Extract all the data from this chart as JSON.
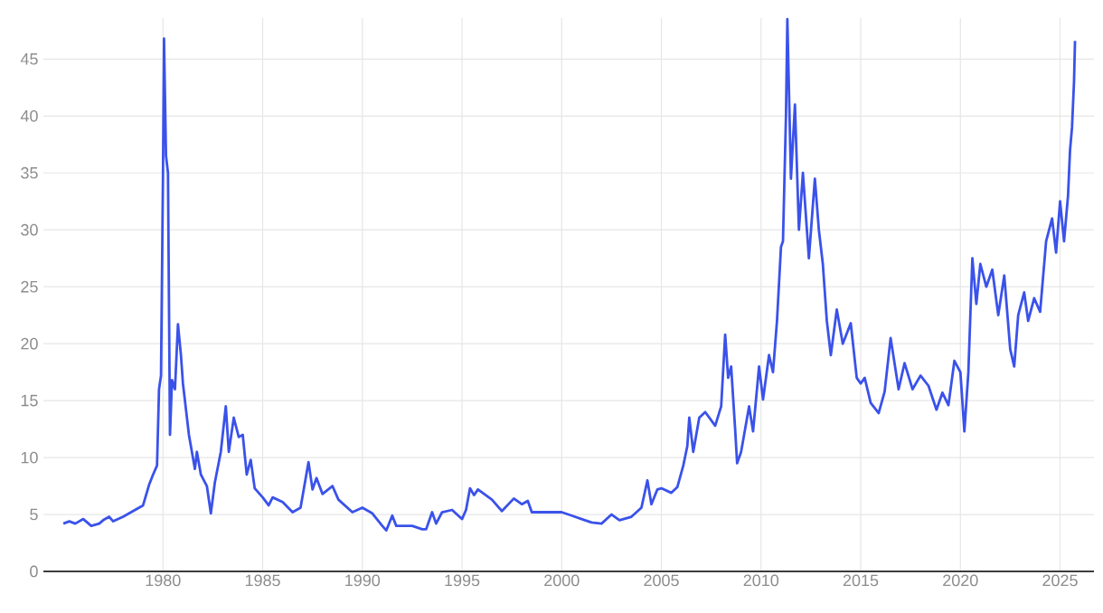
{
  "chart_data": {
    "type": "line",
    "color": "#3a52ea",
    "grid": true,
    "xlim": [
      1974.0,
      2026.7
    ],
    "ylim": [
      0,
      48.6
    ],
    "xticks": [
      1980,
      1985,
      1990,
      1995,
      2000,
      2005,
      2010,
      2015,
      2020,
      2025
    ],
    "yticks": [
      0,
      5,
      10,
      15,
      20,
      25,
      30,
      35,
      40,
      45
    ],
    "x": [
      1975.0,
      1975.3,
      1975.6,
      1976.0,
      1976.4,
      1976.8,
      1977.0,
      1977.3,
      1977.5,
      1978.0,
      1978.5,
      1979.0,
      1979.3,
      1979.5,
      1979.7,
      1979.8,
      1979.9,
      1980.0,
      1980.05,
      1980.15,
      1980.25,
      1980.35,
      1980.45,
      1980.6,
      1980.75,
      1980.9,
      1981.0,
      1981.3,
      1981.6,
      1981.7,
      1981.9,
      1982.2,
      1982.4,
      1982.6,
      1982.9,
      1983.15,
      1983.3,
      1983.55,
      1983.8,
      1984.0,
      1984.2,
      1984.4,
      1984.6,
      1985.0,
      1985.3,
      1985.5,
      1986.0,
      1986.5,
      1986.9,
      1987.3,
      1987.5,
      1987.7,
      1988.0,
      1988.5,
      1988.8,
      1989.5,
      1990.0,
      1990.5,
      1991.0,
      1991.2,
      1991.5,
      1991.7,
      1992.5,
      1993.0,
      1993.2,
      1993.5,
      1993.7,
      1994.0,
      1994.5,
      1995.0,
      1995.2,
      1995.4,
      1995.6,
      1995.8,
      1996.5,
      1997.0,
      1997.6,
      1998.0,
      1998.3,
      1998.5,
      1999.0,
      2000.0,
      2000.5,
      2001.0,
      2001.5,
      2002.0,
      2002.5,
      2002.9,
      2003.5,
      2004.0,
      2004.3,
      2004.5,
      2004.8,
      2005.0,
      2005.5,
      2005.8,
      2006.1,
      2006.3,
      2006.4,
      2006.6,
      2006.9,
      2007.2,
      2007.7,
      2008.0,
      2008.2,
      2008.35,
      2008.5,
      2008.7,
      2008.8,
      2009.0,
      2009.4,
      2009.6,
      2009.9,
      2010.1,
      2010.4,
      2010.6,
      2010.8,
      2011.0,
      2011.1,
      2011.25,
      2011.32,
      2011.5,
      2011.7,
      2011.9,
      2012.1,
      2012.4,
      2012.7,
      2012.9,
      2013.1,
      2013.3,
      2013.5,
      2013.8,
      2014.1,
      2014.5,
      2014.8,
      2015.0,
      2015.2,
      2015.5,
      2015.9,
      2016.2,
      2016.5,
      2016.9,
      2017.2,
      2017.6,
      2018.0,
      2018.4,
      2018.8,
      2019.1,
      2019.4,
      2019.7,
      2020.0,
      2020.2,
      2020.4,
      2020.6,
      2020.8,
      2021.0,
      2021.3,
      2021.6,
      2021.9,
      2022.2,
      2022.5,
      2022.7,
      2022.9,
      2023.2,
      2023.4,
      2023.7,
      2024.0,
      2024.3,
      2024.6,
      2024.8,
      2025.0,
      2025.2,
      2025.4,
      2025.5,
      2025.6,
      2025.7,
      2025.75
    ],
    "values": [
      4.2,
      4.4,
      4.2,
      4.6,
      4.0,
      4.2,
      4.5,
      4.8,
      4.4,
      4.8,
      5.3,
      5.8,
      7.6,
      8.5,
      9.3,
      16.0,
      17.2,
      35,
      46.8,
      36.5,
      35,
      12.0,
      16.8,
      16.0,
      21.7,
      19.0,
      16.5,
      12.0,
      9.0,
      10.5,
      8.5,
      7.5,
      5.1,
      7.8,
      10.5,
      14.5,
      10.5,
      13.5,
      11.8,
      12.0,
      8.5,
      9.8,
      7.3,
      6.5,
      5.8,
      6.5,
      6.1,
      5.2,
      5.6,
      9.6,
      7.2,
      8.2,
      6.8,
      7.5,
      6.3,
      5.2,
      5.6,
      5.1,
      4.0,
      3.6,
      4.9,
      4.0,
      4.0,
      3.7,
      3.7,
      5.2,
      4.2,
      5.2,
      5.4,
      4.6,
      5.4,
      7.3,
      6.7,
      7.2,
      6.3,
      5.3,
      6.4,
      5.9,
      6.2,
      5.2,
      5.2,
      5.2,
      4.9,
      4.6,
      4.3,
      4.2,
      5.0,
      4.5,
      4.8,
      5.6,
      8.0,
      5.9,
      7.2,
      7.3,
      6.9,
      7.4,
      9.3,
      11.0,
      13.5,
      10.5,
      13.5,
      14.0,
      12.8,
      14.5,
      20.8,
      17.0,
      18.0,
      12.5,
      9.5,
      10.5,
      14.5,
      12.3,
      18.0,
      15.1,
      19.0,
      17.5,
      22,
      28.5,
      29.0,
      40,
      48.5,
      34.5,
      41,
      30.0,
      35,
      27.5,
      34.5,
      30.0,
      27,
      22.0,
      19.0,
      23.0,
      20.0,
      21.8,
      17.0,
      16.5,
      17.0,
      14.8,
      13.9,
      15.8,
      20.5,
      16.0,
      18.3,
      16.0,
      17.2,
      16.3,
      14.2,
      15.7,
      14.6,
      18.5,
      17.5,
      12.3,
      17.5,
      27.5,
      23.5,
      27.0,
      25.0,
      26.5,
      22.5,
      26.0,
      19.5,
      18.0,
      22.5,
      24.5,
      22.0,
      24.0,
      22.8,
      29.0,
      31.0,
      28.0,
      32.5,
      29.0,
      33.0,
      37.0,
      39.0,
      43.0,
      46.6
    ]
  }
}
